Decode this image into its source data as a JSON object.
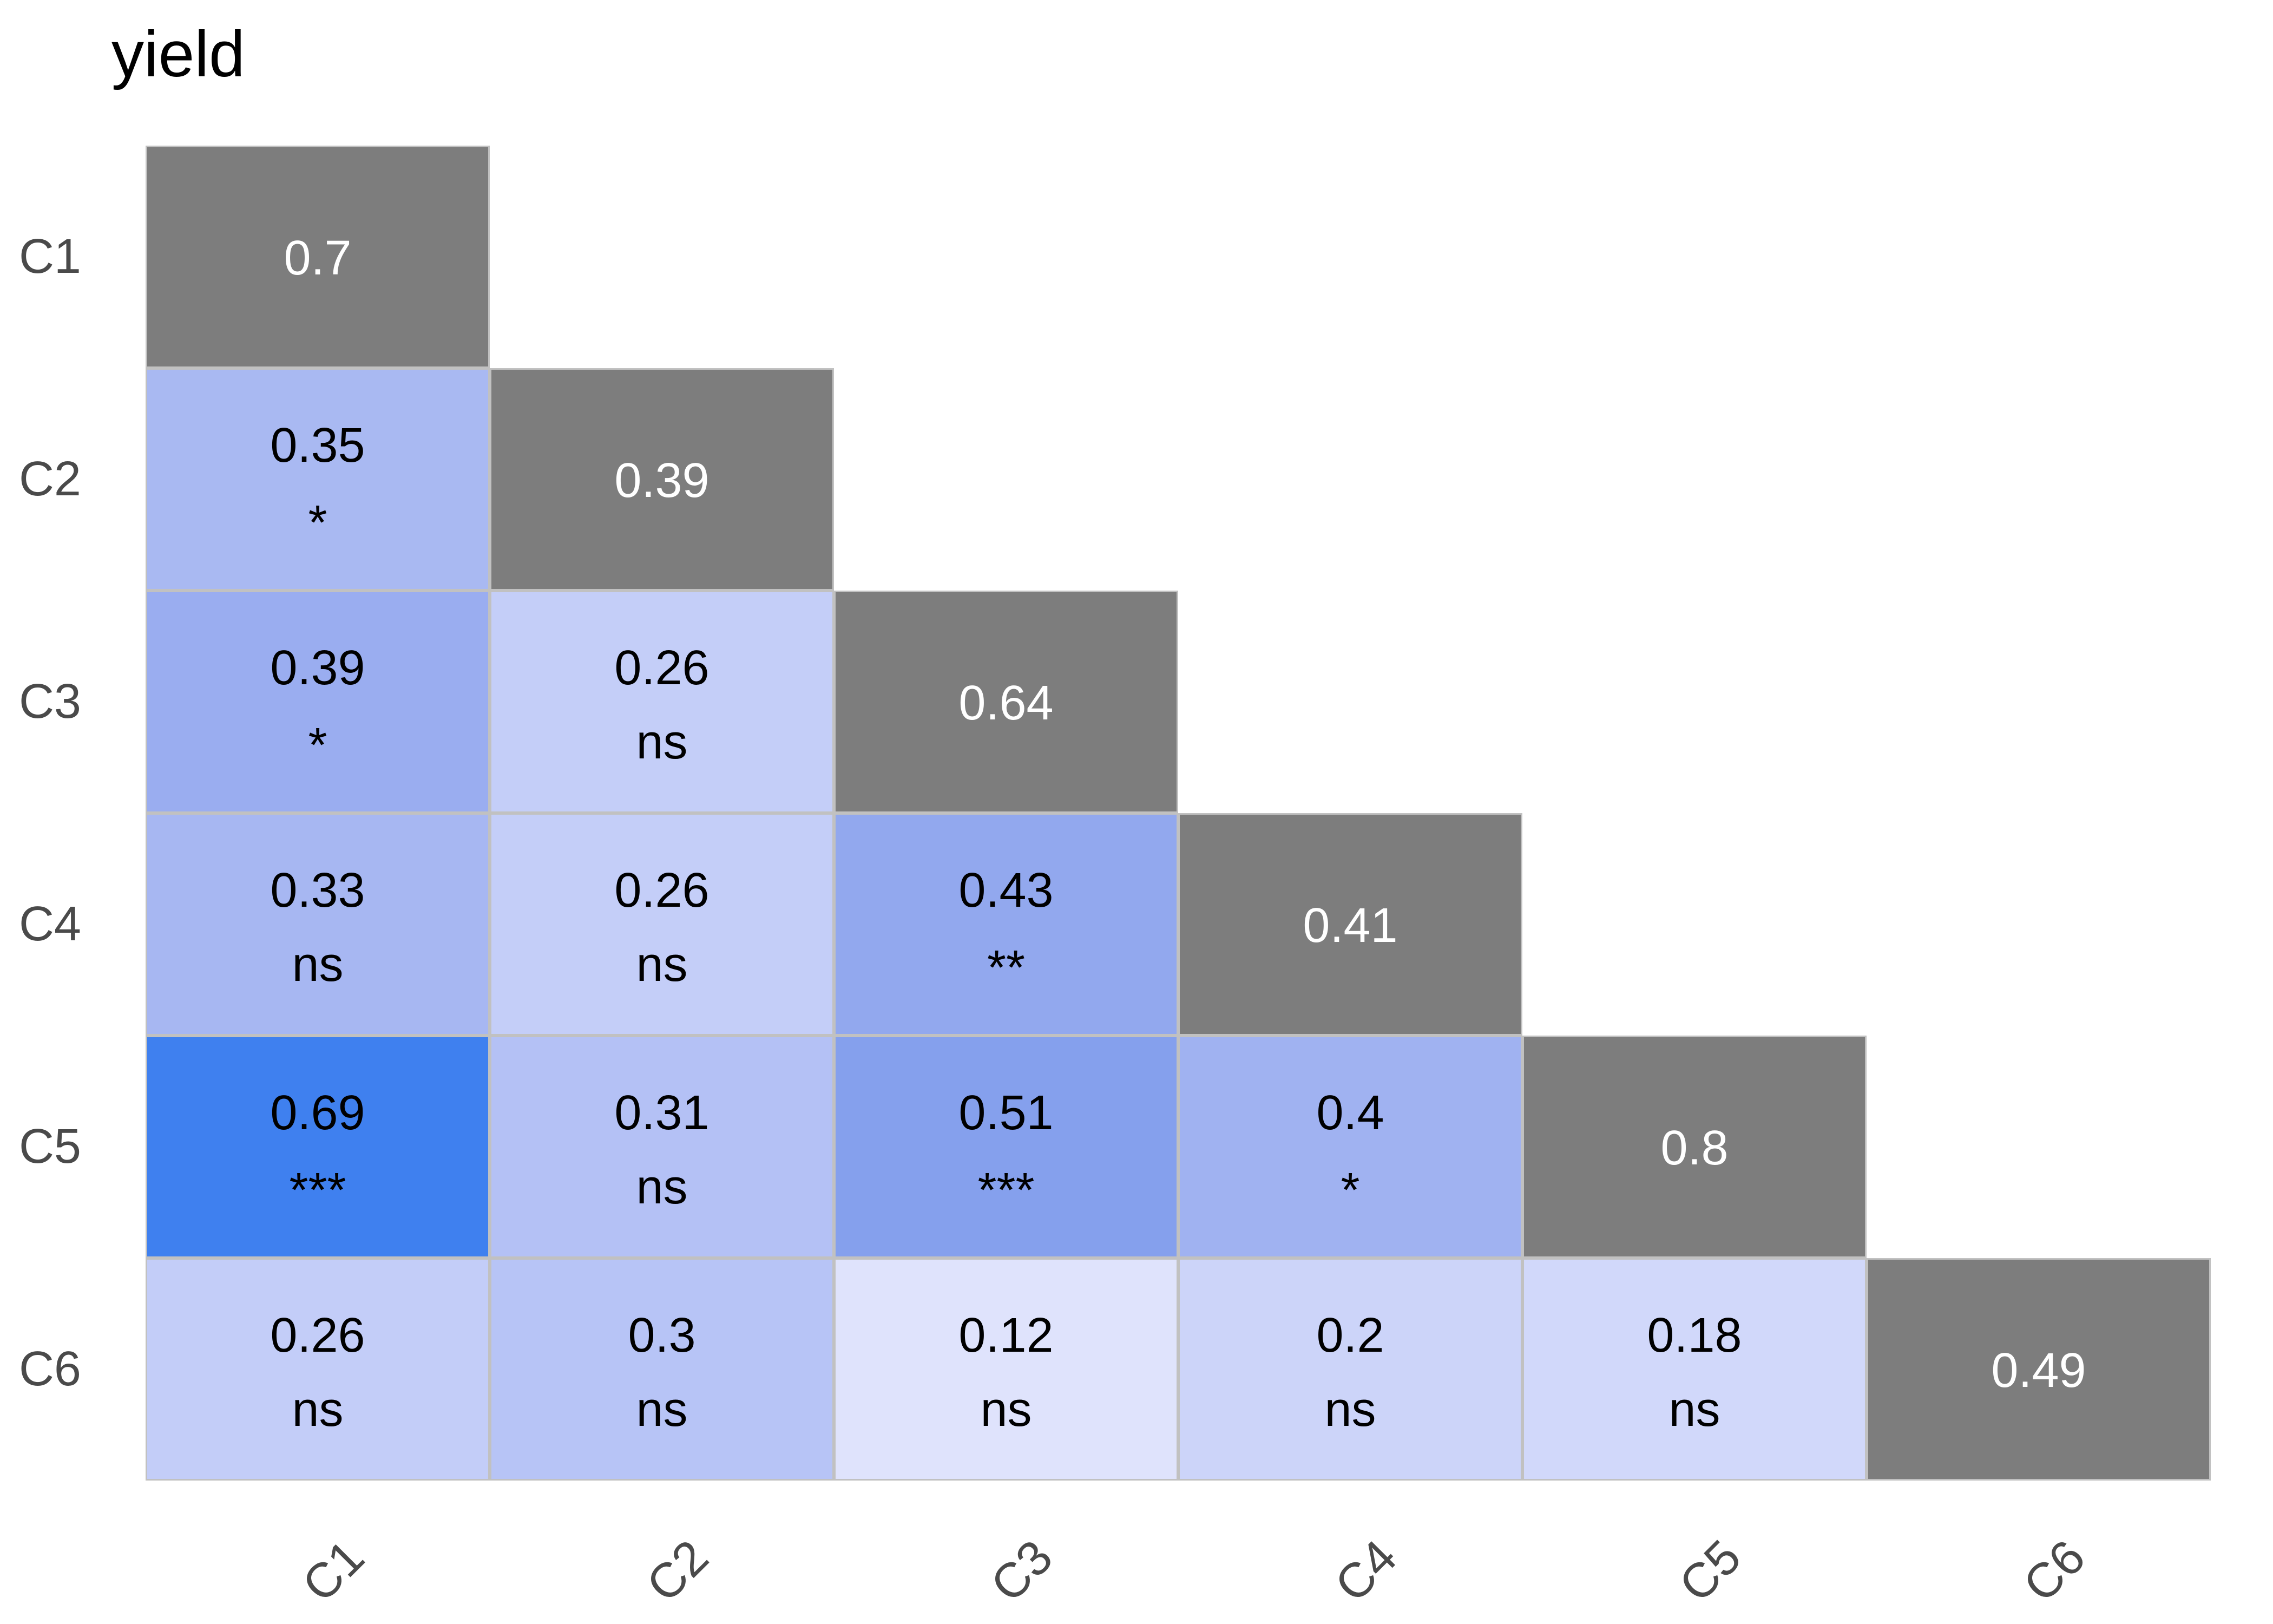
{
  "chart_data": {
    "type": "heatmap",
    "title": "yield",
    "subtitle": "",
    "categories": [
      "C1",
      "C2",
      "C3",
      "C4",
      "C5",
      "C6"
    ],
    "x_axis_labels": [
      "C1",
      "C2",
      "C3",
      "C4",
      "C5",
      "C6"
    ],
    "y_axis_labels": [
      "C1",
      "C2",
      "C3",
      "C4",
      "C5",
      "C6"
    ],
    "layout": {
      "shape": "lower-triangle",
      "legend": "none",
      "x_label_rotation_deg": -45
    },
    "cells": [
      {
        "row": 0,
        "col": 0,
        "value": "0.7",
        "significance": "",
        "diagonal": true,
        "fill": "#7D7D7D",
        "text_color": "#FFFFFF"
      },
      {
        "row": 1,
        "col": 0,
        "value": "0.35",
        "significance": "*",
        "diagonal": false,
        "fill": "#A9B9F2",
        "text_color": "#000000"
      },
      {
        "row": 1,
        "col": 1,
        "value": "0.39",
        "significance": "",
        "diagonal": true,
        "fill": "#7D7D7D",
        "text_color": "#FFFFFF"
      },
      {
        "row": 2,
        "col": 0,
        "value": "0.39",
        "significance": "*",
        "diagonal": false,
        "fill": "#9AADF0",
        "text_color": "#000000"
      },
      {
        "row": 2,
        "col": 1,
        "value": "0.26",
        "significance": "ns",
        "diagonal": false,
        "fill": "#C4CEF8",
        "text_color": "#000000"
      },
      {
        "row": 2,
        "col": 2,
        "value": "0.64",
        "significance": "",
        "diagonal": true,
        "fill": "#7D7D7D",
        "text_color": "#FFFFFF"
      },
      {
        "row": 3,
        "col": 0,
        "value": "0.33",
        "significance": "ns",
        "diagonal": false,
        "fill": "#A7B7F2",
        "text_color": "#000000"
      },
      {
        "row": 3,
        "col": 1,
        "value": "0.26",
        "significance": "ns",
        "diagonal": false,
        "fill": "#C4CEF8",
        "text_color": "#000000"
      },
      {
        "row": 3,
        "col": 2,
        "value": "0.43",
        "significance": "**",
        "diagonal": false,
        "fill": "#92A8EE",
        "text_color": "#000000"
      },
      {
        "row": 3,
        "col": 3,
        "value": "0.41",
        "significance": "",
        "diagonal": true,
        "fill": "#7D7D7D",
        "text_color": "#FFFFFF"
      },
      {
        "row": 4,
        "col": 0,
        "value": "0.69",
        "significance": "***",
        "diagonal": false,
        "fill": "#3F80EF",
        "text_color": "#000000"
      },
      {
        "row": 4,
        "col": 1,
        "value": "0.31",
        "significance": "ns",
        "diagonal": false,
        "fill": "#B4C1F5",
        "text_color": "#000000"
      },
      {
        "row": 4,
        "col": 2,
        "value": "0.51",
        "significance": "***",
        "diagonal": false,
        "fill": "#85A0ED",
        "text_color": "#000000"
      },
      {
        "row": 4,
        "col": 3,
        "value": "0.4",
        "significance": "*",
        "diagonal": false,
        "fill": "#A0B2F1",
        "text_color": "#000000"
      },
      {
        "row": 4,
        "col": 4,
        "value": "0.8",
        "significance": "",
        "diagonal": true,
        "fill": "#7D7D7D",
        "text_color": "#FFFFFF"
      },
      {
        "row": 5,
        "col": 0,
        "value": "0.26",
        "significance": "ns",
        "diagonal": false,
        "fill": "#C3CDF8",
        "text_color": "#000000"
      },
      {
        "row": 5,
        "col": 1,
        "value": "0.3",
        "significance": "ns",
        "diagonal": false,
        "fill": "#B7C4F6",
        "text_color": "#000000"
      },
      {
        "row": 5,
        "col": 2,
        "value": "0.12",
        "significance": "ns",
        "diagonal": false,
        "fill": "#DFE3FC",
        "text_color": "#000000"
      },
      {
        "row": 5,
        "col": 3,
        "value": "0.2",
        "significance": "ns",
        "diagonal": false,
        "fill": "#CCD4F9",
        "text_color": "#000000"
      },
      {
        "row": 5,
        "col": 4,
        "value": "0.18",
        "significance": "ns",
        "diagonal": false,
        "fill": "#D1D8FA",
        "text_color": "#000000"
      },
      {
        "row": 5,
        "col": 5,
        "value": "0.49",
        "significance": "",
        "diagonal": true,
        "fill": "#7D7D7D",
        "text_color": "#FFFFFF"
      }
    ],
    "colors": {
      "diagonal_fill": "#7D7D7D",
      "gutter": "#C1C1C1",
      "axis_label": "#4A4A4A",
      "title": "#000000",
      "background": "#FFFFFF",
      "blue_scale_min": "#DFE3FC",
      "blue_scale_max": "#3F80EF"
    }
  }
}
